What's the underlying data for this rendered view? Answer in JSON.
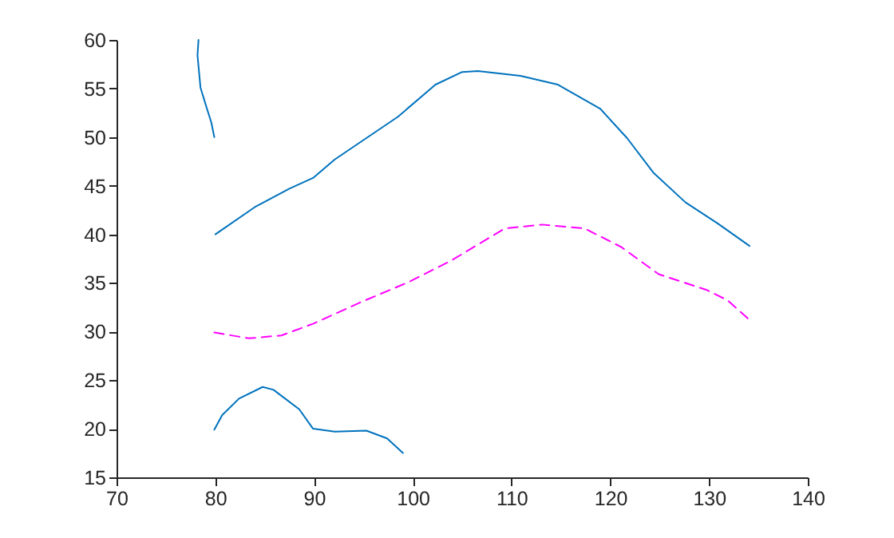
{
  "chart_data": {
    "type": "line",
    "xlim": [
      70,
      140
    ],
    "ylim": [
      15,
      60
    ],
    "xticks": [
      70,
      80,
      90,
      100,
      110,
      120,
      130,
      140
    ],
    "yticks": [
      15,
      20,
      25,
      30,
      35,
      40,
      45,
      50,
      55,
      60
    ],
    "grid": false,
    "marker": "none",
    "series": [
      {
        "color": "#0072bd",
        "line_style": "solid",
        "x": [
          78.3,
          78.2,
          78.5,
          79.1,
          79.6,
          79.9
        ],
        "values": [
          60,
          58.4,
          55.1,
          53.1,
          51.5,
          50
        ]
      },
      {
        "color": "#0072bd",
        "line_style": "solid",
        "x": [
          80,
          84,
          87.5,
          89.9,
          92.1,
          98.5,
          102.3,
          105,
          106.6,
          110.9,
          114.7,
          119,
          121.7,
          124.4,
          127.6,
          130.9,
          134.1
        ],
        "values": [
          40,
          42.8,
          44.7,
          45.8,
          47.7,
          52.1,
          55.4,
          56.7,
          56.8,
          56.3,
          55.4,
          52.9,
          49.9,
          46.3,
          43.3,
          41.1,
          38.8
        ]
      },
      {
        "color": "#ff00ff",
        "line_style": "dashed",
        "x": [
          79.9,
          83.4,
          86.7,
          89.9,
          94.7,
          99.6,
          103.9,
          109.3,
          113.1,
          117.4,
          121.1,
          124.9,
          129.7,
          131.9,
          134.3
        ],
        "values": [
          29.9,
          29.3,
          29.6,
          30.8,
          33,
          35.1,
          37.3,
          40.6,
          41,
          40.6,
          38.7,
          35.9,
          34.3,
          33.2,
          31
        ]
      },
      {
        "color": "#0072bd",
        "line_style": "solid",
        "x": [
          79.9,
          80.7,
          82.4,
          84.8,
          85.9,
          88.5,
          89.9,
          92.1,
          95.3,
          97.4,
          99
        ],
        "values": [
          19.9,
          21.4,
          23.1,
          24.3,
          24,
          22,
          20,
          19.7,
          19.8,
          19,
          17.5
        ]
      }
    ]
  }
}
